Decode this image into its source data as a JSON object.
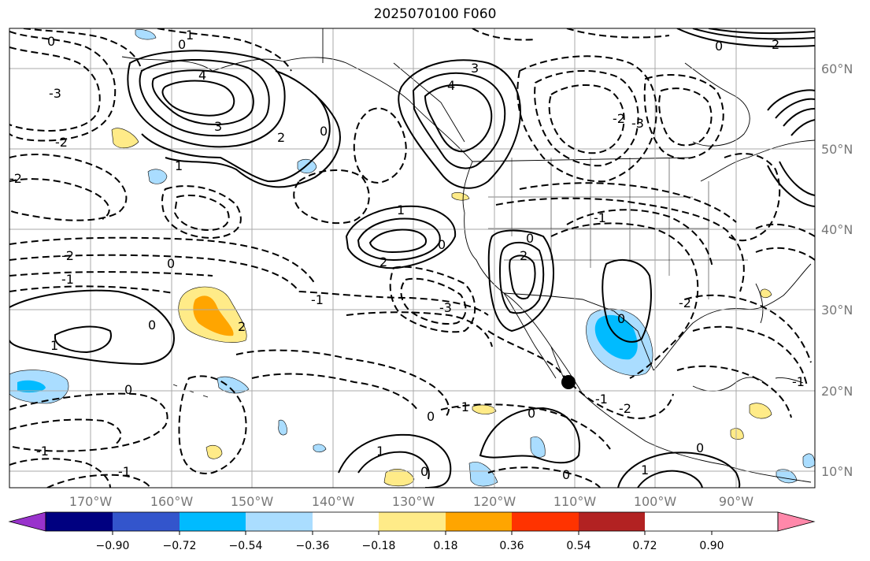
{
  "title": "2025070100 F060",
  "map": {
    "lon_labels": [
      "170°W",
      "160°W",
      "150°W",
      "140°W",
      "130°W",
      "120°W",
      "110°W",
      "100°W",
      "90°W"
    ],
    "lat_labels": [
      "60°N",
      "50°N",
      "40°N",
      "30°N",
      "20°N",
      "10°N"
    ],
    "contour_labels": [
      "0",
      "1",
      "2",
      "3",
      "4",
      "-1",
      "-2",
      "-3"
    ],
    "marker": "black-dot"
  },
  "colorbar": {
    "ticks": [
      "−0.90",
      "−0.72",
      "−0.54",
      "−0.36",
      "−0.18",
      "0.18",
      "0.36",
      "0.54",
      "0.72",
      "0.90"
    ],
    "colors": [
      "#9933cc",
      "#000080",
      "#3355cc",
      "#00bbff",
      "#aaddff",
      "#ffffff",
      "#ffeb88",
      "#ffa500",
      "#ff3300",
      "#b22222",
      "#ff88aa"
    ]
  }
}
